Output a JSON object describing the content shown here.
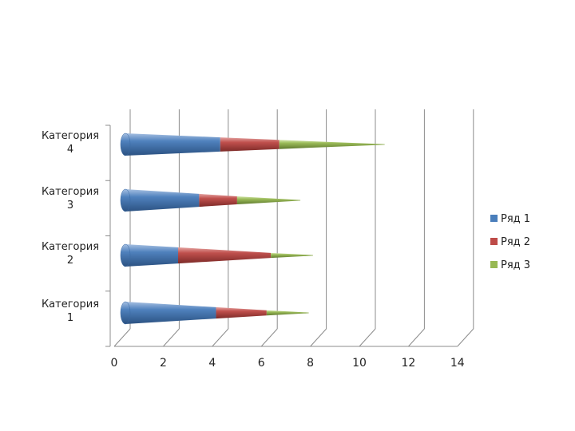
{
  "chart_data": {
    "type": "bar",
    "orientation": "horizontal",
    "stacked": true,
    "style": "3d-cone",
    "categories": [
      [
        "Категория",
        "1"
      ],
      [
        "Категория",
        "2"
      ],
      [
        "Категория",
        "3"
      ],
      [
        "Категория",
        "4"
      ]
    ],
    "series": [
      {
        "name": "Ряд 1",
        "values": [
          4.3,
          2.5,
          3.5,
          4.5
        ],
        "color": "#4a7ebb"
      },
      {
        "name": "Ряд 2",
        "values": [
          2.4,
          4.4,
          1.8,
          2.8
        ],
        "color": "#be4b48"
      },
      {
        "name": "Ряд 3",
        "values": [
          2.0,
          2.0,
          3.0,
          5.0
        ],
        "color": "#98b954"
      }
    ],
    "xticks": [
      "0",
      "2",
      "4",
      "6",
      "8",
      "10",
      "12",
      "14"
    ],
    "xlim": [
      0,
      14
    ],
    "grid": true,
    "legend": "right"
  }
}
